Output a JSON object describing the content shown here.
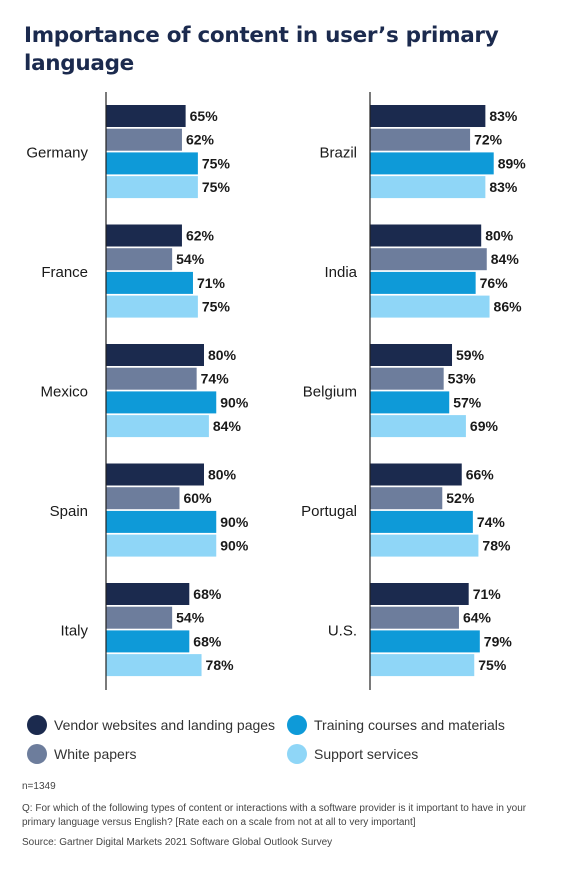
{
  "chart_data": {
    "type": "bar",
    "title": "Importance of content in user’s primary language",
    "orientation": "horizontal",
    "xlim": [
      0,
      100
    ],
    "value_suffix": "%",
    "series": [
      {
        "name": "Vendor websites and landing pages",
        "color": "#1b2a4e"
      },
      {
        "name": "White papers",
        "color": "#6d7d9c"
      },
      {
        "name": "Training courses and materials",
        "color": "#0e9ad8"
      },
      {
        "name": "Support services",
        "color": "#8fd6f7"
      }
    ],
    "panels": [
      {
        "countries": [
          {
            "name": "Germany",
            "values": [
              65,
              62,
              75,
              75
            ]
          },
          {
            "name": "France",
            "values": [
              62,
              54,
              71,
              75
            ]
          },
          {
            "name": "Mexico",
            "values": [
              80,
              74,
              90,
              84
            ]
          },
          {
            "name": "Spain",
            "values": [
              80,
              60,
              90,
              90
            ]
          },
          {
            "name": "Italy",
            "values": [
              68,
              54,
              68,
              78
            ]
          }
        ]
      },
      {
        "countries": [
          {
            "name": "Brazil",
            "values": [
              83,
              72,
              89,
              83
            ]
          },
          {
            "name": "India",
            "values": [
              80,
              84,
              76,
              86
            ]
          },
          {
            "name": "Belgium",
            "values": [
              59,
              53,
              57,
              69
            ]
          },
          {
            "name": "Portugal",
            "values": [
              66,
              52,
              74,
              78
            ]
          },
          {
            "name": "U.S.",
            "values": [
              71,
              64,
              79,
              75
            ]
          }
        ]
      }
    ],
    "legend": "bottom"
  },
  "notes": {
    "n": "n=1349",
    "question": "Q: For which of the following types of content or interactions with a software provider is it important to have in your primary language versus English? [Rate each on a scale from not at all to very important]",
    "source": "Source: Gartner Digital Markets 2021 Software Global Outlook Survey"
  }
}
